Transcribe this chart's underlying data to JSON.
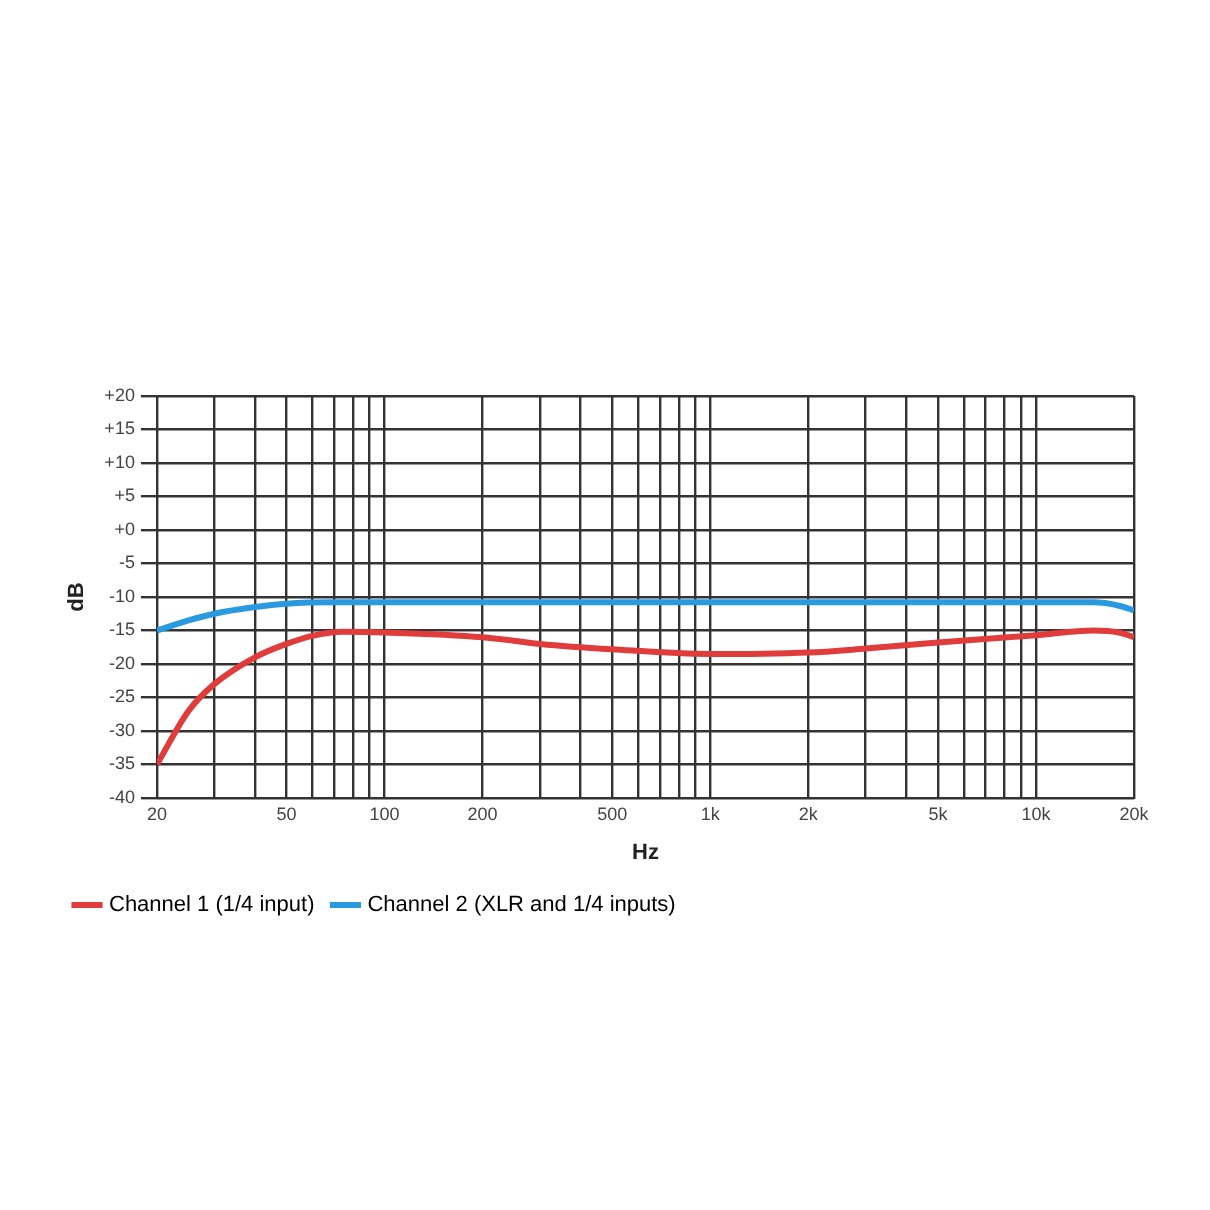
{
  "chart_data": {
    "type": "line",
    "xlabel": "Hz",
    "ylabel": "dB",
    "log": "x",
    "xlim": [
      20,
      20000
    ],
    "xticks": [
      20,
      {
        "value": 30,
        "label": null
      },
      {
        "value": 40,
        "label": null
      },
      50,
      {
        "value": 60,
        "label": null
      },
      {
        "value": 70,
        "label": null
      },
      {
        "value": 80,
        "label": null
      },
      {
        "value": 90,
        "label": null
      },
      100,
      200,
      {
        "value": 300,
        "label": null
      },
      {
        "value": 400,
        "label": null
      },
      500,
      {
        "value": 600,
        "label": null
      },
      {
        "value": 700,
        "label": null
      },
      {
        "value": 800,
        "label": null
      },
      {
        "value": 900,
        "label": null
      },
      {
        "value": 1000,
        "label": "1k"
      },
      {
        "value": 2000,
        "label": "2k"
      },
      {
        "value": 3000,
        "label": null
      },
      {
        "value": 4000,
        "label": null
      },
      {
        "value": 5000,
        "label": "5k"
      },
      {
        "value": 6000,
        "label": null
      },
      {
        "value": 7000,
        "label": null
      },
      {
        "value": 8000,
        "label": null
      },
      {
        "value": 9000,
        "label": null
      },
      {
        "value": 10000,
        "label": "10k"
      },
      {
        "value": 20000,
        "label": "20k"
      }
    ],
    "ylim": [
      -40,
      20
    ],
    "yticks": [
      -40,
      -35,
      -30,
      -25,
      -20,
      -15,
      -10,
      -5,
      {
        "value": 0,
        "label": "+0"
      },
      {
        "value": 5,
        "label": "+5"
      },
      {
        "value": 10,
        "label": "+10"
      },
      {
        "value": 15,
        "label": "+15"
      },
      {
        "value": 20,
        "label": "+20"
      }
    ],
    "grid": true,
    "legend": "bottom left",
    "marker": "none",
    "line_style": "solid",
    "series": [
      {
        "name": "Channel 1 (1/4 input)",
        "color": "#e03c3c",
        "x": [
          20,
          25,
          30,
          40,
          50,
          60,
          75,
          100,
          200,
          300,
          500,
          1000,
          2000,
          3000,
          5000,
          10000,
          15000,
          18000,
          20000
        ],
        "values": [
          -35,
          -27,
          -23,
          -19,
          -17,
          -15.8,
          -15.2,
          -15.3,
          -16,
          -17,
          -17.8,
          -18.5,
          -18.3,
          -17.7,
          -16.8,
          -15.7,
          -15,
          -15.3,
          -16
        ]
      },
      {
        "name": "Channel 2 (XLR and 1/4 inputs)",
        "color": "#2a9ae0",
        "x": [
          20,
          25,
          30,
          40,
          50,
          70,
          100,
          1000,
          10000,
          15000,
          18000,
          20000
        ],
        "values": [
          -15,
          -13.5,
          -12.5,
          -11.5,
          -11,
          -10.8,
          -10.8,
          -10.8,
          -10.8,
          -10.8,
          -11.3,
          -12
        ]
      }
    ]
  }
}
